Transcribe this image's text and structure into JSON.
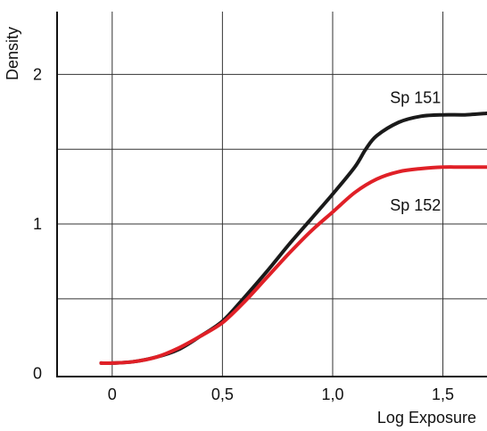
{
  "chart_data": {
    "type": "line",
    "xlabel": "Log  Exposure",
    "ylabel": "Density",
    "xlim": [
      -0.25,
      1.7
    ],
    "ylim": [
      -0.02,
      2.42
    ],
    "x_ticks": [
      {
        "value": 0,
        "label": "0"
      },
      {
        "value": 0.5,
        "label": "0,5"
      },
      {
        "value": 1.0,
        "label": "1,0"
      },
      {
        "value": 1.5,
        "label": "1,5"
      }
    ],
    "y_ticks": [
      {
        "value": 0,
        "label": "0"
      },
      {
        "value": 1,
        "label": "1"
      },
      {
        "value": 2,
        "label": "2"
      }
    ],
    "grid_x": [
      0,
      0.5,
      1.0,
      1.5
    ],
    "grid_y": [
      0.5,
      1.0,
      1.5,
      2.0
    ],
    "grid": true,
    "colors": {
      "grid": "#333333",
      "axis": "#111111"
    },
    "series": [
      {
        "name": "Sp  151",
        "color": "#1a1a1a",
        "points": [
          [
            -0.05,
            0.07
          ],
          [
            0.0,
            0.07
          ],
          [
            0.1,
            0.08
          ],
          [
            0.2,
            0.11
          ],
          [
            0.3,
            0.16
          ],
          [
            0.4,
            0.25
          ],
          [
            0.5,
            0.35
          ],
          [
            0.6,
            0.51
          ],
          [
            0.7,
            0.68
          ],
          [
            0.8,
            0.86
          ],
          [
            0.9,
            1.03
          ],
          [
            1.0,
            1.2
          ],
          [
            1.1,
            1.38
          ],
          [
            1.15,
            1.5
          ],
          [
            1.2,
            1.59
          ],
          [
            1.3,
            1.68
          ],
          [
            1.4,
            1.72
          ],
          [
            1.5,
            1.73
          ],
          [
            1.6,
            1.73
          ],
          [
            1.7,
            1.74
          ]
        ]
      },
      {
        "name": "Sp  152",
        "color": "#e02027",
        "points": [
          [
            -0.05,
            0.07
          ],
          [
            0.0,
            0.07
          ],
          [
            0.1,
            0.08
          ],
          [
            0.2,
            0.11
          ],
          [
            0.3,
            0.17
          ],
          [
            0.4,
            0.25
          ],
          [
            0.5,
            0.34
          ],
          [
            0.6,
            0.48
          ],
          [
            0.7,
            0.64
          ],
          [
            0.8,
            0.8
          ],
          [
            0.9,
            0.95
          ],
          [
            1.0,
            1.08
          ],
          [
            1.1,
            1.21
          ],
          [
            1.2,
            1.3
          ],
          [
            1.3,
            1.35
          ],
          [
            1.4,
            1.37
          ],
          [
            1.5,
            1.38
          ],
          [
            1.6,
            1.38
          ],
          [
            1.7,
            1.38
          ]
        ]
      }
    ],
    "series_labels": [
      {
        "series_index": 0,
        "text": "Sp  151",
        "x": 1.26,
        "y": 1.81
      },
      {
        "series_index": 1,
        "text": "Sp  152",
        "x": 1.26,
        "y": 1.09
      }
    ]
  }
}
